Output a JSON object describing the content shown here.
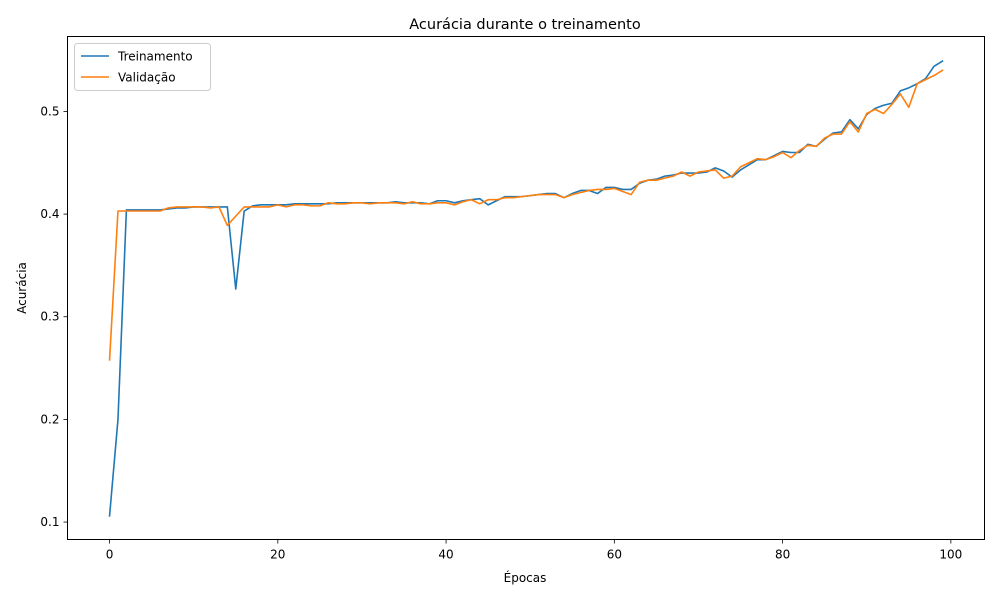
{
  "chart_data": {
    "type": "line",
    "title": "Acurácia durante o treinamento",
    "xlabel": "Épocas",
    "ylabel": "Acurácia",
    "xlim": [
      -5,
      104
    ],
    "ylim": [
      0.083,
      0.573
    ],
    "xticks": [
      0,
      20,
      40,
      60,
      80,
      100
    ],
    "yticks": [
      0.1,
      0.2,
      0.3,
      0.4,
      0.5
    ],
    "ytick_labels": [
      "0.1",
      "0.2",
      "0.3",
      "0.4",
      "0.5"
    ],
    "grid": false,
    "legend_position": "top-left",
    "series": [
      {
        "name": "Treinamento",
        "color": "#1f77b4",
        "x": [
          0,
          1,
          2,
          3,
          4,
          5,
          6,
          7,
          8,
          9,
          10,
          11,
          12,
          13,
          14,
          15,
          16,
          17,
          18,
          19,
          20,
          21,
          22,
          23,
          24,
          25,
          26,
          27,
          28,
          29,
          30,
          31,
          32,
          33,
          34,
          35,
          36,
          37,
          38,
          39,
          40,
          41,
          42,
          43,
          44,
          45,
          46,
          47,
          48,
          49,
          50,
          51,
          52,
          53,
          54,
          55,
          56,
          57,
          58,
          59,
          60,
          61,
          62,
          63,
          64,
          65,
          66,
          67,
          68,
          69,
          70,
          71,
          72,
          73,
          74,
          75,
          76,
          77,
          78,
          79,
          80,
          81,
          82,
          83,
          84,
          85,
          86,
          87,
          88,
          89,
          90,
          91,
          92,
          93,
          94,
          95,
          96,
          97,
          98,
          99
        ],
        "values": [
          0.106,
          0.2,
          0.404,
          0.404,
          0.404,
          0.404,
          0.404,
          0.405,
          0.406,
          0.406,
          0.407,
          0.407,
          0.407,
          0.407,
          0.407,
          0.327,
          0.403,
          0.408,
          0.409,
          0.409,
          0.409,
          0.409,
          0.41,
          0.41,
          0.41,
          0.41,
          0.41,
          0.411,
          0.411,
          0.411,
          0.411,
          0.411,
          0.411,
          0.411,
          0.412,
          0.411,
          0.411,
          0.411,
          0.41,
          0.413,
          0.413,
          0.411,
          0.413,
          0.414,
          0.415,
          0.409,
          0.413,
          0.417,
          0.417,
          0.417,
          0.418,
          0.419,
          0.42,
          0.42,
          0.416,
          0.42,
          0.423,
          0.423,
          0.42,
          0.426,
          0.426,
          0.424,
          0.424,
          0.43,
          0.433,
          0.434,
          0.437,
          0.438,
          0.44,
          0.44,
          0.44,
          0.441,
          0.445,
          0.442,
          0.436,
          0.443,
          0.448,
          0.453,
          0.453,
          0.457,
          0.461,
          0.46,
          0.46,
          0.468,
          0.466,
          0.473,
          0.479,
          0.48,
          0.492,
          0.483,
          0.497,
          0.503,
          0.506,
          0.508,
          0.52,
          0.523,
          0.527,
          0.532,
          0.544,
          0.549
        ]
      },
      {
        "name": "Validação",
        "color": "#ff7f0e",
        "x": [
          0,
          1,
          2,
          3,
          4,
          5,
          6,
          7,
          8,
          9,
          10,
          11,
          12,
          13,
          14,
          15,
          16,
          17,
          18,
          19,
          20,
          21,
          22,
          23,
          24,
          25,
          26,
          27,
          28,
          29,
          30,
          31,
          32,
          33,
          34,
          35,
          36,
          37,
          38,
          39,
          40,
          41,
          42,
          43,
          44,
          45,
          46,
          47,
          48,
          49,
          50,
          51,
          52,
          53,
          54,
          55,
          56,
          57,
          58,
          59,
          60,
          61,
          62,
          63,
          64,
          65,
          66,
          67,
          68,
          69,
          70,
          71,
          72,
          73,
          74,
          75,
          76,
          77,
          78,
          79,
          80,
          81,
          82,
          83,
          84,
          85,
          86,
          87,
          88,
          89,
          90,
          91,
          92,
          93,
          94,
          95,
          96,
          97,
          98,
          99
        ],
        "values": [
          0.258,
          0.403,
          0.403,
          0.403,
          0.403,
          0.403,
          0.403,
          0.406,
          0.407,
          0.407,
          0.407,
          0.407,
          0.406,
          0.407,
          0.389,
          0.398,
          0.407,
          0.407,
          0.407,
          0.407,
          0.409,
          0.407,
          0.409,
          0.409,
          0.408,
          0.408,
          0.411,
          0.41,
          0.41,
          0.411,
          0.411,
          0.41,
          0.411,
          0.411,
          0.411,
          0.41,
          0.412,
          0.41,
          0.41,
          0.411,
          0.411,
          0.409,
          0.412,
          0.414,
          0.41,
          0.414,
          0.414,
          0.416,
          0.416,
          0.417,
          0.418,
          0.419,
          0.419,
          0.419,
          0.416,
          0.419,
          0.421,
          0.423,
          0.424,
          0.424,
          0.425,
          0.422,
          0.419,
          0.431,
          0.433,
          0.433,
          0.435,
          0.437,
          0.441,
          0.437,
          0.441,
          0.442,
          0.443,
          0.435,
          0.437,
          0.446,
          0.45,
          0.454,
          0.453,
          0.456,
          0.46,
          0.455,
          0.462,
          0.467,
          0.466,
          0.474,
          0.478,
          0.478,
          0.49,
          0.48,
          0.498,
          0.502,
          0.498,
          0.507,
          0.517,
          0.504,
          0.527,
          0.531,
          0.535,
          0.54
        ]
      }
    ]
  }
}
